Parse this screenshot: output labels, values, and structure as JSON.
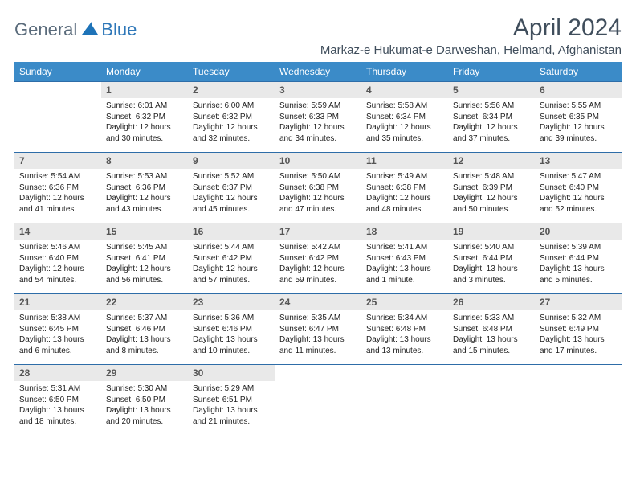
{
  "logo": {
    "part1": "General",
    "part2": "Blue"
  },
  "title": "April 2024",
  "location": "Markaz-e Hukumat-e Darweshan, Helmand, Afghanistan",
  "colors": {
    "header_bg": "#3b8bc8",
    "header_text": "#ffffff",
    "daynum_bg": "#e9e9e9",
    "row_border": "#2e6da8",
    "title_color": "#404e5c",
    "logo_gray": "#5a6b7b",
    "logo_blue": "#2e77b8"
  },
  "week_header": [
    "Sunday",
    "Monday",
    "Tuesday",
    "Wednesday",
    "Thursday",
    "Friday",
    "Saturday"
  ],
  "weeks": [
    [
      {
        "n": "",
        "sr": "",
        "ss": "",
        "d1": "",
        "d2": ""
      },
      {
        "n": "1",
        "sr": "Sunrise: 6:01 AM",
        "ss": "Sunset: 6:32 PM",
        "d1": "Daylight: 12 hours",
        "d2": "and 30 minutes."
      },
      {
        "n": "2",
        "sr": "Sunrise: 6:00 AM",
        "ss": "Sunset: 6:32 PM",
        "d1": "Daylight: 12 hours",
        "d2": "and 32 minutes."
      },
      {
        "n": "3",
        "sr": "Sunrise: 5:59 AM",
        "ss": "Sunset: 6:33 PM",
        "d1": "Daylight: 12 hours",
        "d2": "and 34 minutes."
      },
      {
        "n": "4",
        "sr": "Sunrise: 5:58 AM",
        "ss": "Sunset: 6:34 PM",
        "d1": "Daylight: 12 hours",
        "d2": "and 35 minutes."
      },
      {
        "n": "5",
        "sr": "Sunrise: 5:56 AM",
        "ss": "Sunset: 6:34 PM",
        "d1": "Daylight: 12 hours",
        "d2": "and 37 minutes."
      },
      {
        "n": "6",
        "sr": "Sunrise: 5:55 AM",
        "ss": "Sunset: 6:35 PM",
        "d1": "Daylight: 12 hours",
        "d2": "and 39 minutes."
      }
    ],
    [
      {
        "n": "7",
        "sr": "Sunrise: 5:54 AM",
        "ss": "Sunset: 6:36 PM",
        "d1": "Daylight: 12 hours",
        "d2": "and 41 minutes."
      },
      {
        "n": "8",
        "sr": "Sunrise: 5:53 AM",
        "ss": "Sunset: 6:36 PM",
        "d1": "Daylight: 12 hours",
        "d2": "and 43 minutes."
      },
      {
        "n": "9",
        "sr": "Sunrise: 5:52 AM",
        "ss": "Sunset: 6:37 PM",
        "d1": "Daylight: 12 hours",
        "d2": "and 45 minutes."
      },
      {
        "n": "10",
        "sr": "Sunrise: 5:50 AM",
        "ss": "Sunset: 6:38 PM",
        "d1": "Daylight: 12 hours",
        "d2": "and 47 minutes."
      },
      {
        "n": "11",
        "sr": "Sunrise: 5:49 AM",
        "ss": "Sunset: 6:38 PM",
        "d1": "Daylight: 12 hours",
        "d2": "and 48 minutes."
      },
      {
        "n": "12",
        "sr": "Sunrise: 5:48 AM",
        "ss": "Sunset: 6:39 PM",
        "d1": "Daylight: 12 hours",
        "d2": "and 50 minutes."
      },
      {
        "n": "13",
        "sr": "Sunrise: 5:47 AM",
        "ss": "Sunset: 6:40 PM",
        "d1": "Daylight: 12 hours",
        "d2": "and 52 minutes."
      }
    ],
    [
      {
        "n": "14",
        "sr": "Sunrise: 5:46 AM",
        "ss": "Sunset: 6:40 PM",
        "d1": "Daylight: 12 hours",
        "d2": "and 54 minutes."
      },
      {
        "n": "15",
        "sr": "Sunrise: 5:45 AM",
        "ss": "Sunset: 6:41 PM",
        "d1": "Daylight: 12 hours",
        "d2": "and 56 minutes."
      },
      {
        "n": "16",
        "sr": "Sunrise: 5:44 AM",
        "ss": "Sunset: 6:42 PM",
        "d1": "Daylight: 12 hours",
        "d2": "and 57 minutes."
      },
      {
        "n": "17",
        "sr": "Sunrise: 5:42 AM",
        "ss": "Sunset: 6:42 PM",
        "d1": "Daylight: 12 hours",
        "d2": "and 59 minutes."
      },
      {
        "n": "18",
        "sr": "Sunrise: 5:41 AM",
        "ss": "Sunset: 6:43 PM",
        "d1": "Daylight: 13 hours",
        "d2": "and 1 minute."
      },
      {
        "n": "19",
        "sr": "Sunrise: 5:40 AM",
        "ss": "Sunset: 6:44 PM",
        "d1": "Daylight: 13 hours",
        "d2": "and 3 minutes."
      },
      {
        "n": "20",
        "sr": "Sunrise: 5:39 AM",
        "ss": "Sunset: 6:44 PM",
        "d1": "Daylight: 13 hours",
        "d2": "and 5 minutes."
      }
    ],
    [
      {
        "n": "21",
        "sr": "Sunrise: 5:38 AM",
        "ss": "Sunset: 6:45 PM",
        "d1": "Daylight: 13 hours",
        "d2": "and 6 minutes."
      },
      {
        "n": "22",
        "sr": "Sunrise: 5:37 AM",
        "ss": "Sunset: 6:46 PM",
        "d1": "Daylight: 13 hours",
        "d2": "and 8 minutes."
      },
      {
        "n": "23",
        "sr": "Sunrise: 5:36 AM",
        "ss": "Sunset: 6:46 PM",
        "d1": "Daylight: 13 hours",
        "d2": "and 10 minutes."
      },
      {
        "n": "24",
        "sr": "Sunrise: 5:35 AM",
        "ss": "Sunset: 6:47 PM",
        "d1": "Daylight: 13 hours",
        "d2": "and 11 minutes."
      },
      {
        "n": "25",
        "sr": "Sunrise: 5:34 AM",
        "ss": "Sunset: 6:48 PM",
        "d1": "Daylight: 13 hours",
        "d2": "and 13 minutes."
      },
      {
        "n": "26",
        "sr": "Sunrise: 5:33 AM",
        "ss": "Sunset: 6:48 PM",
        "d1": "Daylight: 13 hours",
        "d2": "and 15 minutes."
      },
      {
        "n": "27",
        "sr": "Sunrise: 5:32 AM",
        "ss": "Sunset: 6:49 PM",
        "d1": "Daylight: 13 hours",
        "d2": "and 17 minutes."
      }
    ],
    [
      {
        "n": "28",
        "sr": "Sunrise: 5:31 AM",
        "ss": "Sunset: 6:50 PM",
        "d1": "Daylight: 13 hours",
        "d2": "and 18 minutes."
      },
      {
        "n": "29",
        "sr": "Sunrise: 5:30 AM",
        "ss": "Sunset: 6:50 PM",
        "d1": "Daylight: 13 hours",
        "d2": "and 20 minutes."
      },
      {
        "n": "30",
        "sr": "Sunrise: 5:29 AM",
        "ss": "Sunset: 6:51 PM",
        "d1": "Daylight: 13 hours",
        "d2": "and 21 minutes."
      },
      {
        "n": "",
        "sr": "",
        "ss": "",
        "d1": "",
        "d2": ""
      },
      {
        "n": "",
        "sr": "",
        "ss": "",
        "d1": "",
        "d2": ""
      },
      {
        "n": "",
        "sr": "",
        "ss": "",
        "d1": "",
        "d2": ""
      },
      {
        "n": "",
        "sr": "",
        "ss": "",
        "d1": "",
        "d2": ""
      }
    ]
  ]
}
